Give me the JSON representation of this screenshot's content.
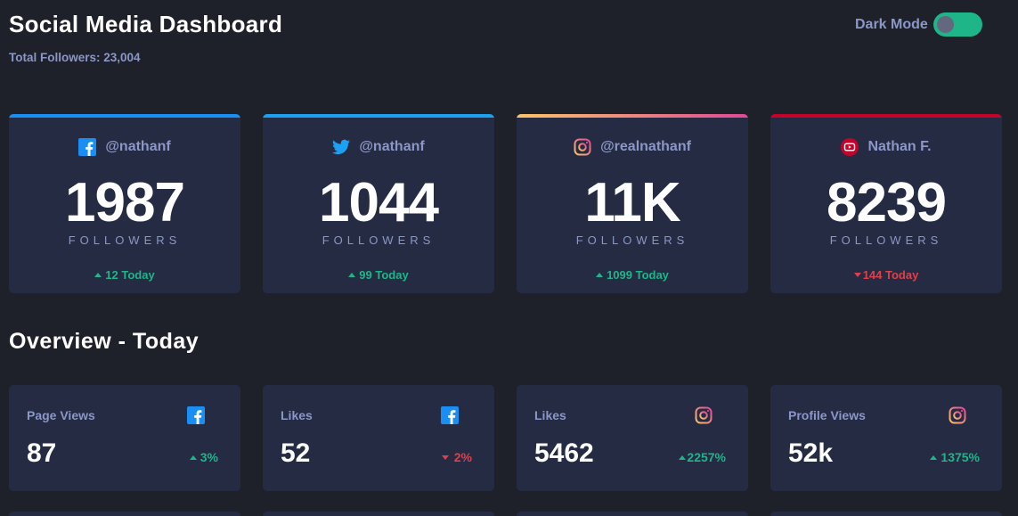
{
  "header": {
    "title": "Social Media Dashboard",
    "subtitle": "Total Followers: 23,004",
    "dark_mode_label": "Dark Mode",
    "dark_mode_on": true
  },
  "cards": [
    {
      "platform": "facebook",
      "icon": "facebook-icon",
      "accent": "#198ff5",
      "handle": "@nathanf",
      "count": "1987",
      "label": "FOLLOWERS",
      "today": "12 Today",
      "trend": "up"
    },
    {
      "platform": "twitter",
      "icon": "twitter-icon",
      "accent": "#1ca0f2",
      "handle": "@nathanf",
      "count": "1044",
      "label": "FOLLOWERS",
      "today": "99 Today",
      "trend": "up"
    },
    {
      "platform": "instagram",
      "icon": "instagram-icon",
      "accent": "#fdc468",
      "handle": "@realnathanf",
      "count": "11K",
      "label": "FOLLOWERS",
      "today": "1099 Today",
      "trend": "up"
    },
    {
      "platform": "youtube",
      "icon": "youtube-icon",
      "accent": "#c4032a",
      "handle": "Nathan F.",
      "count": "8239",
      "label": "FOLLOWERS",
      "today": "144 Today",
      "trend": "down"
    }
  ],
  "overview": {
    "title": "Overview - Today",
    "items": [
      {
        "label": "Page Views",
        "icon": "facebook-icon",
        "value": "87",
        "change": "3%",
        "trend": "up"
      },
      {
        "label": "Likes",
        "icon": "facebook-icon",
        "value": "52",
        "change": "2%",
        "trend": "down"
      },
      {
        "label": "Likes",
        "icon": "instagram-icon",
        "value": "5462",
        "change": "2257%",
        "trend": "up"
      },
      {
        "label": "Profile Views",
        "icon": "instagram-icon",
        "value": "52k",
        "change": "1375%",
        "trend": "up"
      }
    ]
  },
  "colors": {
    "background": "#1e202a",
    "card": "#252b43",
    "muted_text": "#8b97c6",
    "positive": "#1eb589",
    "negative": "#dc414c"
  }
}
